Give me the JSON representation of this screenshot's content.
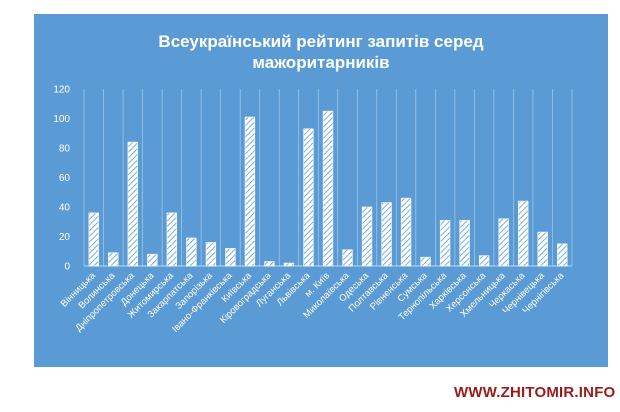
{
  "chart_data": {
    "type": "bar",
    "title_lines": [
      "Всеукраїнський рейтинг запитів серед",
      "мажоритарників"
    ],
    "categories": [
      "Вінницька",
      "Волинська",
      "Дніпропетровська",
      "Донецька",
      "Житомирська",
      "Закарпатська",
      "Запорізька",
      "Івано-Франківська",
      "Київська",
      "Кіровоградська",
      "Луганська",
      "Львівська",
      "м. Київ",
      "Миколаївська",
      "Одеська",
      "Полтавська",
      "Рівненська",
      "Сумська",
      "Тернопільська",
      "Харківська",
      "Херсонська",
      "Хмельницька",
      "Черкаська",
      "Чернівецька",
      "Чернігівська"
    ],
    "values": [
      36,
      9,
      84,
      8,
      36,
      19,
      16,
      12,
      101,
      3,
      2,
      93,
      105,
      11,
      40,
      43,
      46,
      6,
      31,
      31,
      7,
      32,
      44,
      23,
      15
    ],
    "ylim": [
      0,
      120
    ],
    "yticks": [
      0,
      20,
      40,
      60,
      80,
      100,
      120
    ],
    "xlabel": "",
    "ylabel": "",
    "grid": "vertical",
    "legend": "none",
    "colors": {
      "background": "#5b9bd5",
      "bar_fill": "#ffffff",
      "bar_hatch": "#5b9bd5",
      "text": "#ffffff",
      "grid": "#ffffff"
    }
  },
  "watermark": "WWW.ZHITOMIR.INFO"
}
